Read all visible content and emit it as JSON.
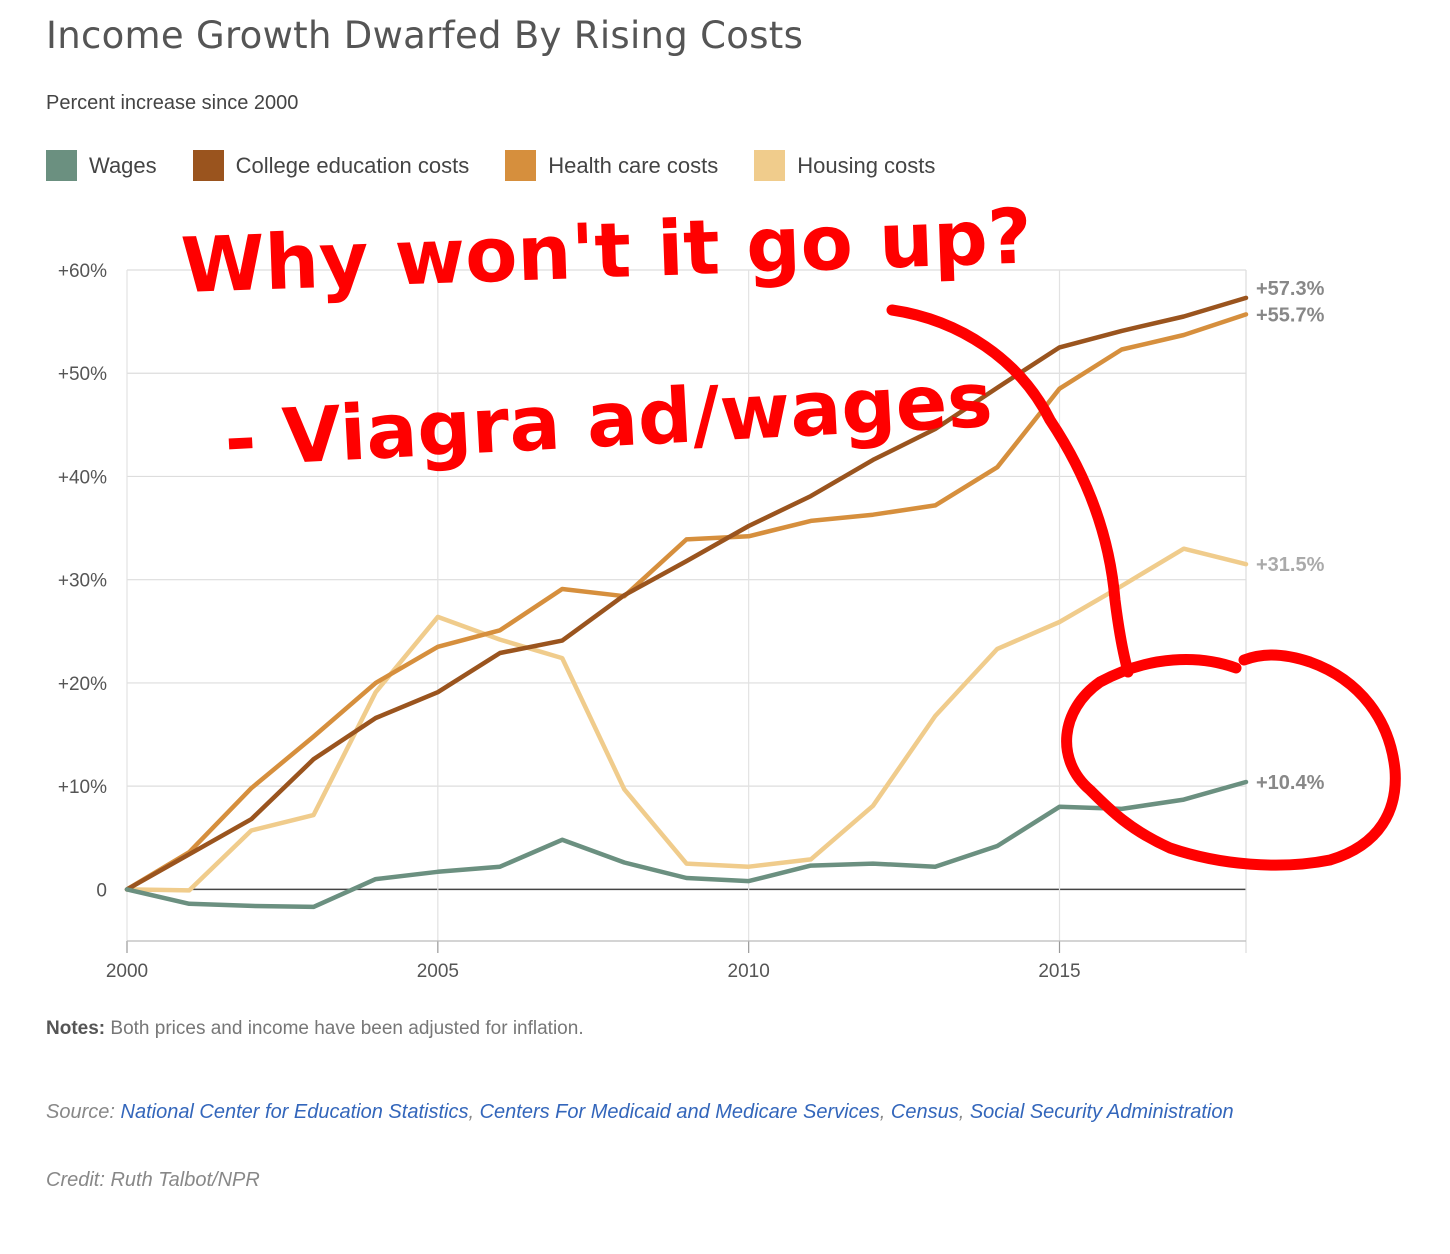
{
  "title": "Income Growth Dwarfed By Rising Costs",
  "subtitle": "Percent increase since 2000",
  "annotation": {
    "line1": "Why won't it go up?",
    "line2": "- Viagra ad/wages",
    "color": "#ff0000"
  },
  "notes": {
    "label": "Notes:",
    "text": "Both prices and income have been adjusted for inflation."
  },
  "source": {
    "label": "Source:",
    "links": [
      "National Center for Education Statistics",
      "Centers For Medicaid and Medicare Services",
      "Census",
      "Social Security Administration"
    ]
  },
  "credit": "Credit: Ruth Talbot/NPR",
  "chart_data": {
    "type": "line",
    "x": [
      2000,
      2001,
      2002,
      2003,
      2004,
      2005,
      2006,
      2007,
      2008,
      2009,
      2010,
      2011,
      2012,
      2013,
      2014,
      2015,
      2016,
      2017,
      2018
    ],
    "xlim": [
      2000,
      2018
    ],
    "ylim": [
      -5,
      60
    ],
    "xticks": [
      2000,
      2005,
      2010,
      2015
    ],
    "xtick_labels": [
      "2000",
      "2005",
      "2010",
      "2015"
    ],
    "yticks": [
      0,
      10,
      20,
      30,
      40,
      50,
      60
    ],
    "ytick_labels": [
      "0",
      "+10%",
      "+20%",
      "+30%",
      "+40%",
      "+50%",
      "+60%"
    ],
    "grid": true,
    "legend_position": "top-left",
    "series": [
      {
        "name": "Wages",
        "color": "#6b9080",
        "values": [
          0,
          -1.4,
          -1.6,
          -1.7,
          1,
          1.7,
          2.2,
          4.8,
          2.6,
          1.1,
          0.8,
          2.3,
          2.5,
          2.2,
          4.2,
          8,
          7.8,
          8.7,
          10.4
        ],
        "end_label": "+10.4%"
      },
      {
        "name": "College education costs",
        "color": "#9a541e",
        "values": [
          0,
          3.4,
          6.8,
          12.6,
          16.6,
          19.1,
          22.9,
          24.1,
          28.5,
          31.8,
          35.2,
          38.1,
          41.6,
          44.6,
          48.6,
          52.5,
          54.1,
          55.5,
          57.3
        ],
        "end_label": "+57.3%"
      },
      {
        "name": "Health care costs",
        "color": "#d68f3d",
        "values": [
          0,
          3.6,
          9.8,
          14.8,
          20,
          23.5,
          25.1,
          29.1,
          28.4,
          33.9,
          34.2,
          35.7,
          36.3,
          37.2,
          40.9,
          48.5,
          52.3,
          53.7,
          55.7
        ],
        "end_label": "+55.7%"
      },
      {
        "name": "Housing costs",
        "color": "#f0cc8c",
        "values": [
          0,
          -0.1,
          5.7,
          7.2,
          19.1,
          26.4,
          24.2,
          22.4,
          9.7,
          2.5,
          2.2,
          2.9,
          8.1,
          16.8,
          23.3,
          25.9,
          29.4,
          33,
          31.5
        ],
        "end_label": "+31.5%"
      }
    ]
  }
}
